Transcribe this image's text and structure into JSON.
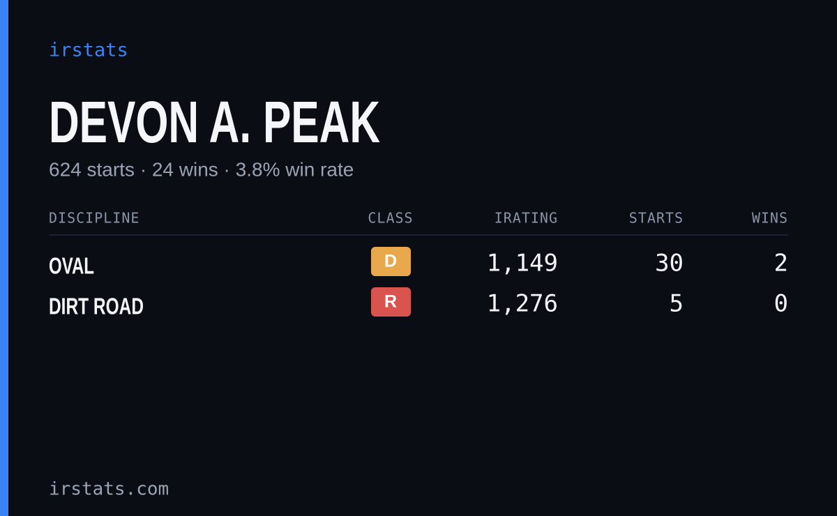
{
  "brand": "irstats",
  "driver": {
    "name": "DEVON A. PEAK",
    "summary": "624 starts · 24 wins · 3.8% win rate"
  },
  "table": {
    "headers": [
      "DISCIPLINE",
      "CLASS",
      "IRATING",
      "STARTS",
      "WINS"
    ],
    "rows": [
      {
        "discipline": "OVAL",
        "class": "D",
        "class_color": "#e9a84b",
        "irating": "1,149",
        "starts": "30",
        "wins": "2"
      },
      {
        "discipline": "DIRT ROAD",
        "class": "R",
        "class_color": "#d9534f",
        "irating": "1,276",
        "starts": "5",
        "wins": "0"
      }
    ]
  },
  "footer": "irstats.com"
}
